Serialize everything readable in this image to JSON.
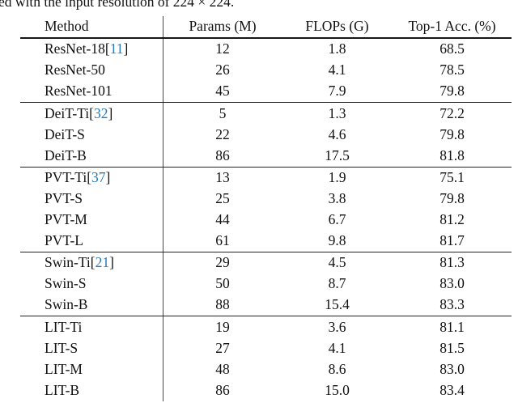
{
  "caption": "ed with the input resolution of 224 × 224.",
  "format": {
    "cite_open": " [",
    "cite_close": "]"
  },
  "colors": {
    "cite_link": "#2878b8",
    "text": "#111111",
    "rule": "#161616"
  },
  "table": {
    "columns": [
      "Method",
      "Params (M)",
      "FLOPs (G)",
      "Top-1 Acc. (%)"
    ],
    "groups": [
      {
        "rows": [
          {
            "method": "ResNet-18",
            "cite": "11",
            "params": "12",
            "flops": "1.8",
            "acc": "68.5"
          },
          {
            "method": "ResNet-50",
            "params": "26",
            "flops": "4.1",
            "acc": "78.5"
          },
          {
            "method": "ResNet-101",
            "params": "45",
            "flops": "7.9",
            "acc": "79.8"
          }
        ]
      },
      {
        "rows": [
          {
            "method": "DeiT-Ti",
            "cite": "32",
            "params": "5",
            "flops": "1.3",
            "acc": "72.2"
          },
          {
            "method": "DeiT-S",
            "params": "22",
            "flops": "4.6",
            "acc": "79.8"
          },
          {
            "method": "DeiT-B",
            "params": "86",
            "flops": "17.5",
            "acc": "81.8"
          }
        ]
      },
      {
        "rows": [
          {
            "method": "PVT-Ti",
            "cite": "37",
            "params": "13",
            "flops": "1.9",
            "acc": "75.1"
          },
          {
            "method": "PVT-S",
            "params": "25",
            "flops": "3.8",
            "acc": "79.8"
          },
          {
            "method": "PVT-M",
            "params": "44",
            "flops": "6.7",
            "acc": "81.2"
          },
          {
            "method": "PVT-L",
            "params": "61",
            "flops": "9.8",
            "acc": "81.7"
          }
        ]
      },
      {
        "rows": [
          {
            "method": "Swin-Ti",
            "cite": "21",
            "params": "29",
            "flops": "4.5",
            "acc": "81.3"
          },
          {
            "method": "Swin-S",
            "params": "50",
            "flops": "8.7",
            "acc": "83.0"
          },
          {
            "method": "Swin-B",
            "params": "88",
            "flops": "15.4",
            "acc": "83.3"
          }
        ]
      },
      {
        "rows": [
          {
            "method": "LIT-Ti",
            "params": "19",
            "flops": "3.6",
            "acc": "81.1"
          },
          {
            "method": "LIT-S",
            "params": "27",
            "flops": "4.1",
            "acc": "81.5"
          },
          {
            "method": "LIT-M",
            "params": "48",
            "flops": "8.6",
            "acc": "83.0"
          },
          {
            "method": "LIT-B",
            "params": "86",
            "flops": "15.0",
            "acc": "83.4"
          }
        ]
      }
    ]
  }
}
